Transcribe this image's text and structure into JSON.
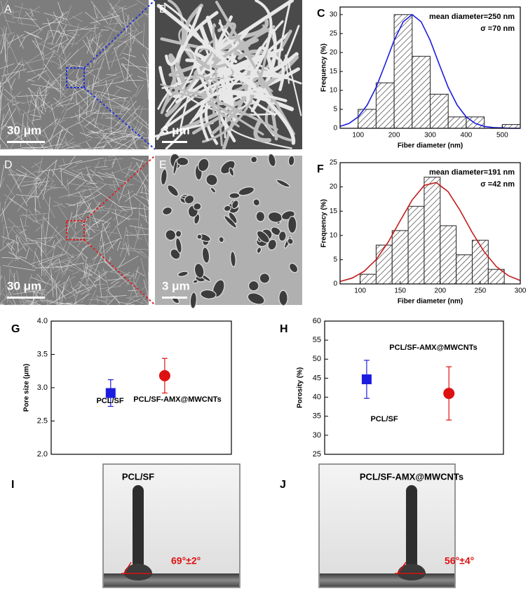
{
  "micrographs": [
    {
      "label": "A",
      "scale_bar": "30 μm"
    },
    {
      "label": "B",
      "scale_bar": "3 μm"
    },
    {
      "label": "D",
      "scale_bar": "30 μm"
    },
    {
      "label": "E",
      "scale_bar": "3 μm"
    }
  ],
  "contact_angle": [
    {
      "label": "I",
      "sample": "PCL/SF",
      "angle": "69°±2°"
    },
    {
      "label": "J",
      "sample": "PCL/SF-AMX@MWCNTs",
      "angle": "56°±4°"
    }
  ],
  "chart_data": [
    {
      "type": "histogram",
      "label": "C",
      "x_label": "Fiber diameter (nm)",
      "y_label": "Frequency (%)",
      "annotations": [
        "mean diameter=250 nm",
        "σ =70 nm"
      ],
      "bins": [
        100,
        150,
        200,
        250,
        300,
        350,
        400,
        450,
        500,
        550
      ],
      "values": [
        5,
        12,
        30,
        19,
        9,
        3,
        3,
        0,
        1
      ],
      "fit": {
        "color": "#1c1ce0",
        "x": [
          50,
          75,
          100,
          125,
          150,
          175,
          200,
          225,
          250,
          275,
          300,
          325,
          350,
          375,
          400,
          425,
          450,
          475,
          500,
          525,
          550
        ],
        "values": [
          0.5,
          1.3,
          3.0,
          6.1,
          10.8,
          16.9,
          23.2,
          28.1,
          30,
          28.1,
          23.2,
          16.9,
          10.8,
          6.1,
          3.0,
          1.3,
          0.5,
          0.2,
          0.1,
          0,
          0
        ]
      },
      "xlim": [
        50,
        550
      ],
      "xticks": [
        100,
        200,
        300,
        400,
        500
      ],
      "ylim": [
        0,
        32
      ],
      "yticks": [
        0,
        5,
        10,
        15,
        20,
        25,
        30
      ]
    },
    {
      "type": "histogram",
      "label": "F",
      "x_label": "Fiber diameter (nm)",
      "y_label": "Frequency (%)",
      "annotations": [
        "mean diameter=191 nm",
        "σ =42 nm"
      ],
      "bins": [
        100,
        120,
        140,
        160,
        180,
        200,
        220,
        240,
        260,
        280
      ],
      "values": [
        2,
        8,
        11,
        16,
        22,
        12,
        6,
        9,
        3
      ],
      "fit": {
        "color": "#c41a1a",
        "x": [
          75,
          90,
          105,
          120,
          135,
          150,
          165,
          180,
          195,
          210,
          225,
          240,
          255,
          270,
          285,
          300
        ],
        "values": [
          0.5,
          1.2,
          2.6,
          5.0,
          8.6,
          13.0,
          17.3,
          20.3,
          20.9,
          19.0,
          15.1,
          10.6,
          6.6,
          3.6,
          1.7,
          0.7
        ]
      },
      "xlim": [
        75,
        300
      ],
      "xticks": [
        100,
        150,
        200,
        250,
        300
      ],
      "ylim": [
        0,
        25
      ],
      "yticks": [
        0,
        5,
        10,
        15,
        20,
        25
      ]
    },
    {
      "type": "errorbar",
      "label": "G",
      "y_label": "Pore size (μm)",
      "series": [
        {
          "name": "PCL/SF",
          "color": "#1c1ce0",
          "marker": "square",
          "values": [
            2.92
          ],
          "errors": [
            0.2
          ]
        },
        {
          "name": "PCL/SF-AMX@MWCNTs",
          "color": "#dd1111",
          "marker": "circle",
          "values": [
            3.18
          ],
          "errors": [
            0.26
          ]
        }
      ],
      "ylim": [
        2,
        4
      ],
      "yticks": [
        {
          "value": 2,
          "label": "2.0"
        },
        2.5,
        {
          "value": 3,
          "label": "3.0"
        },
        3.5,
        {
          "value": 4,
          "label": "4.0"
        }
      ]
    },
    {
      "type": "errorbar",
      "label": "H",
      "y_label": "Porosity (%)",
      "series": [
        {
          "name": "PCL/SF",
          "color": "#1c1ce0",
          "marker": "square",
          "values": [
            44.7
          ],
          "errors": [
            5
          ]
        },
        {
          "name": "PCL/SF-AMX@MWCNTs",
          "color": "#dd1111",
          "marker": "circle",
          "values": [
            41
          ],
          "errors": [
            7
          ]
        }
      ],
      "ylim": [
        25,
        60
      ],
      "yticks": [
        25,
        30,
        35,
        40,
        45,
        50,
        55,
        60
      ]
    }
  ]
}
